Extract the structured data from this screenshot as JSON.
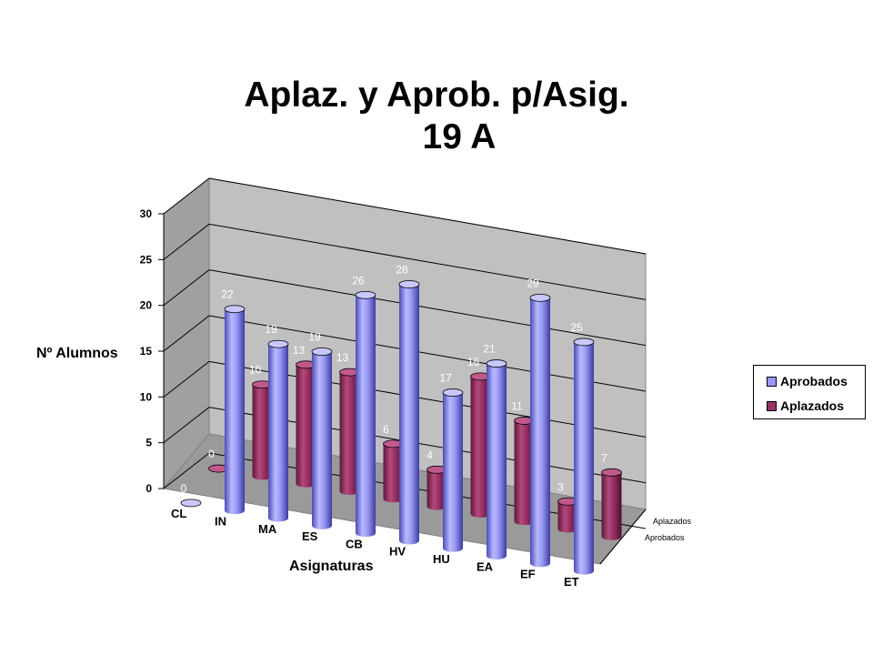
{
  "chart_data": {
    "type": "bar",
    "title_line1": "Aplaz. y Aprob. p/Asig.",
    "title_line2": "19  A",
    "xlabel": "Asignaturas",
    "ylabel": "Nº Alumnos",
    "ylim": [
      0,
      30
    ],
    "yticks": [
      "0",
      "5",
      "10",
      "15",
      "20",
      "25",
      "30"
    ],
    "categories": [
      "CL",
      "IN",
      "MA",
      "ES",
      "CB",
      "HV",
      "HU",
      "EA",
      "EF",
      "ET"
    ],
    "series": [
      {
        "name": "Aprobados",
        "values": [
          0,
          22,
          19,
          19,
          26,
          28,
          17,
          21,
          29,
          25
        ],
        "color": "#9999ff"
      },
      {
        "name": "Aplazados",
        "values": [
          0,
          10,
          13,
          13,
          6,
          4,
          15,
          11,
          3,
          7
        ],
        "color": "#993366"
      }
    ],
    "depth_labels": [
      "Aplazados",
      "Aprobados"
    ],
    "legend_position": "right",
    "grid": true
  }
}
